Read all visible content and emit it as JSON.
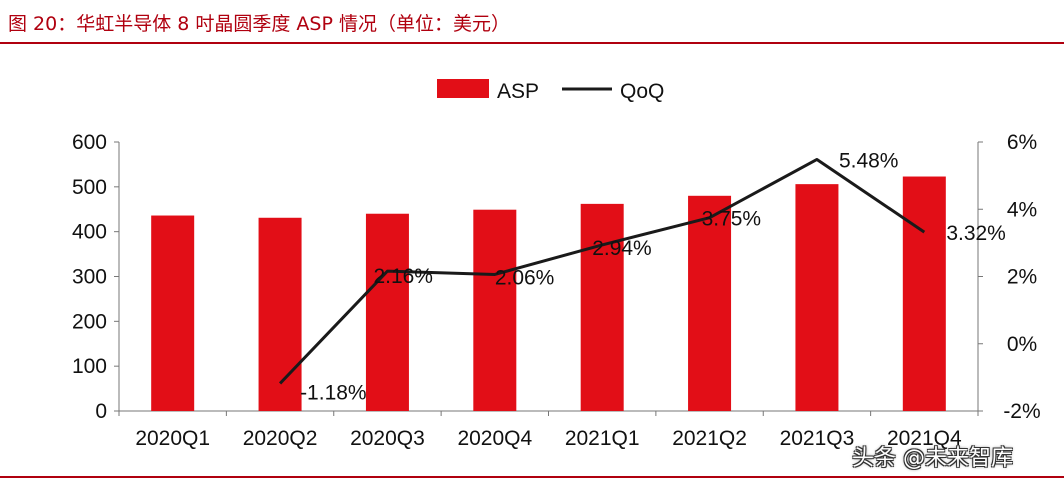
{
  "header": {
    "title": "图 20：华虹半导体 8 吋晶圆季度 ASP 情况（单位：美元）"
  },
  "watermark": {
    "text": "头条 @未来智库"
  },
  "colors": {
    "bar": "#e20e17",
    "line": "#1a1a1a",
    "header": "#b0000f"
  },
  "chart_data": {
    "type": "bar",
    "categories": [
      "2020Q1",
      "2020Q2",
      "2020Q3",
      "2020Q4",
      "2021Q1",
      "2021Q2",
      "2021Q3",
      "2021Q4"
    ],
    "series": [
      {
        "name": "ASP",
        "type": "bar",
        "axis": "left",
        "values": [
          436,
          431,
          440,
          449,
          462,
          480,
          506,
          523
        ]
      },
      {
        "name": "QoQ",
        "type": "line",
        "axis": "right",
        "values": [
          null,
          -1.18,
          2.16,
          2.06,
          2.94,
          3.75,
          5.48,
          3.32
        ],
        "labels": [
          null,
          "-1.18%",
          "2.16%",
          "2.06%",
          "2.94%",
          "3.75%",
          "5.48%",
          "3.32%"
        ]
      }
    ],
    "y_left": {
      "ylim": [
        0,
        600
      ],
      "ticks": [
        "0",
        "100",
        "200",
        "300",
        "400",
        "500",
        "600"
      ]
    },
    "y_right": {
      "ylim": [
        -2,
        6
      ],
      "ticks": [
        "-2%",
        "0%",
        "2%",
        "4%",
        "6%"
      ]
    },
    "legend": {
      "position": "top-center",
      "items": [
        "ASP",
        "QoQ"
      ]
    }
  }
}
